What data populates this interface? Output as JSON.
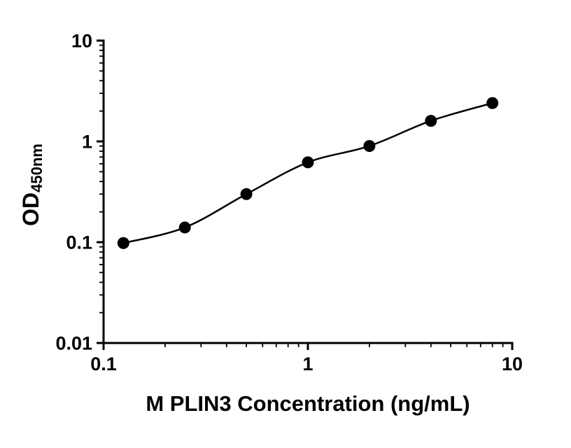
{
  "chart_data": {
    "type": "scatter",
    "x": [
      0.125,
      0.25,
      0.5,
      1,
      2,
      4,
      8
    ],
    "y": [
      0.098,
      0.14,
      0.3,
      0.62,
      0.9,
      1.6,
      2.4
    ],
    "curve": "smooth-through-points",
    "title": "",
    "xlabel": "M PLIN3 Concentration (ng/mL)",
    "ylabel_main": "OD",
    "ylabel_subscript": "450nm",
    "x_scale": "log10",
    "y_scale": "log10",
    "xlim": [
      0.1,
      10
    ],
    "ylim": [
      0.01,
      10
    ],
    "x_ticks": [
      0.1,
      1,
      10
    ],
    "x_tick_labels": [
      "0.1",
      "1",
      "10"
    ],
    "y_ticks": [
      0.01,
      0.1,
      1,
      10
    ],
    "y_tick_labels": [
      "0.01",
      "0.1",
      "1",
      "10"
    ],
    "minor_ticks": true,
    "grid": false,
    "legend": false,
    "marker_color": "#000000",
    "line_color": "#000000",
    "axis_color": "#000000",
    "background": "#ffffff"
  }
}
